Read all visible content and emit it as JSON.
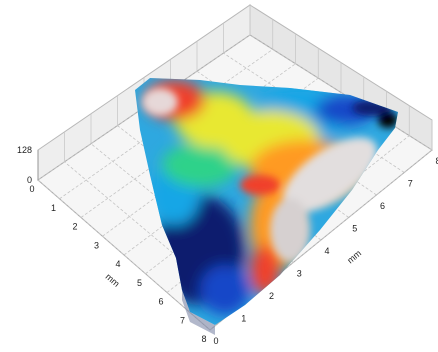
{
  "chart_data": {
    "type": "heatmap",
    "subtype": "3d-surface-topography",
    "z_axis": {
      "ticks": [
        "0",
        "128"
      ],
      "range": [
        0,
        128
      ]
    },
    "x_axis": {
      "label": "mm",
      "ticks": [
        "0",
        "1",
        "2",
        "3",
        "4",
        "5",
        "6",
        "7",
        "8"
      ],
      "range": [
        0,
        8
      ]
    },
    "y_axis": {
      "label": "mm",
      "ticks": [
        "0",
        "1",
        "2",
        "3",
        "4",
        "5",
        "6",
        "7",
        "8"
      ],
      "range": [
        0,
        8
      ]
    },
    "grid": true,
    "colormap": [
      "#0b1a6e",
      "#1446c8",
      "#18a6e6",
      "#2ed28a",
      "#e8e830",
      "#ff9a20",
      "#f0402a",
      "#e2dede"
    ]
  }
}
